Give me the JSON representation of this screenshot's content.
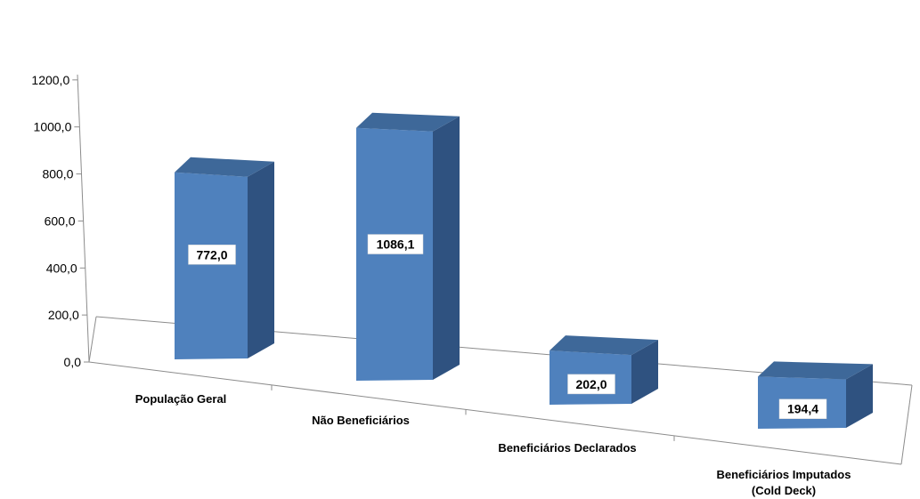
{
  "chart_data": {
    "type": "bar",
    "categories": [
      [
        "População Geral"
      ],
      [
        "Não Beneficiários"
      ],
      [
        "Beneficiários Declarados"
      ],
      [
        "Beneficiários Imputados",
        "(Cold Deck)"
      ]
    ],
    "values": [
      772.0,
      1086.1,
      202.0,
      194.4
    ],
    "data_labels": [
      "772,0",
      "1086,1",
      "202,0",
      "194,4"
    ],
    "yticks": [
      "0,0",
      "200,0",
      "400,0",
      "600,0",
      "800,0",
      "1000,0",
      "1200,0"
    ],
    "ylim": [
      0,
      1200
    ],
    "title": "",
    "xlabel": "",
    "ylabel": "",
    "style": "3d-column",
    "grid": false,
    "legend": "none",
    "colors": {
      "front": "#4f81bd",
      "top": "#3e6899",
      "side": "#2f5280",
      "axis": "#8c8c8c"
    }
  }
}
